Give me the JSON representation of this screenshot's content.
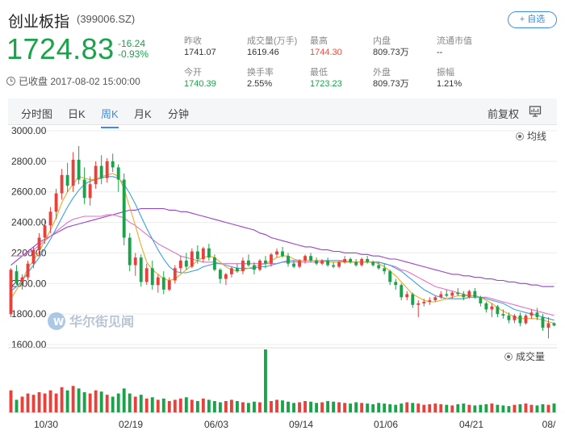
{
  "header": {
    "title": "创业板指",
    "code": "(399006.SZ)",
    "watch_label": "+ 自选"
  },
  "quote": {
    "price": "1724.83",
    "change": "-16.24",
    "change_pct": "-0.93%",
    "status": "已收盘 2017-08-02 15:00:00"
  },
  "stats": [
    {
      "label": "昨收",
      "value": "1741.07",
      "color": "normal"
    },
    {
      "label": "成交量(万手)",
      "value": "1619.46",
      "color": "normal"
    },
    {
      "label": "最高",
      "value": "1744.30",
      "color": "red"
    },
    {
      "label": "内盘",
      "value": "809.73万",
      "color": "normal"
    },
    {
      "label": "流通市值",
      "value": "--",
      "color": "normal"
    },
    {
      "label": "今开",
      "value": "1740.39",
      "color": "green"
    },
    {
      "label": "换手率",
      "value": "2.55%",
      "color": "normal"
    },
    {
      "label": "最低",
      "value": "1723.23",
      "color": "green"
    },
    {
      "label": "外盘",
      "value": "809.73万",
      "color": "normal"
    },
    {
      "label": "振幅",
      "value": "1.21%",
      "color": "normal"
    }
  ],
  "tabs": [
    {
      "label": "分时图",
      "active": false
    },
    {
      "label": "日K",
      "active": false
    },
    {
      "label": "周K",
      "active": true
    },
    {
      "label": "月K",
      "active": false
    },
    {
      "label": "分钟",
      "active": false
    }
  ],
  "adjust_label": "前复权",
  "colors": {
    "up": "#e8413c",
    "down": "#1aa34a",
    "ma5": "#f5a623",
    "ma10": "#3aa0e0",
    "ma20": "#e56fc8",
    "ma60": "#9b3fcf",
    "accent": "#3a8ee6"
  },
  "chart_data": {
    "type": "candlestick",
    "y_ticks": [
      "3000.00",
      "2800.00",
      "2600.00",
      "2400.00",
      "2200.00",
      "2000.00",
      "1800.00",
      "1600.00"
    ],
    "ylim": [
      1600,
      3000
    ],
    "x_labels": [
      "10/30",
      "02/19",
      "06/03",
      "09/14",
      "01/06",
      "04/21",
      "08/"
    ],
    "ma_legend": "均线",
    "volume_legend": "成交量",
    "watermark": "华尔街见闻",
    "price_series": [
      [
        1800,
        2100,
        1780,
        2090
      ],
      [
        2080,
        2120,
        1990,
        2010
      ],
      [
        2010,
        2060,
        1960,
        2040
      ],
      [
        2040,
        2150,
        2020,
        2130
      ],
      [
        2130,
        2240,
        2100,
        2220
      ],
      [
        2220,
        2330,
        2180,
        2300
      ],
      [
        2300,
        2420,
        2260,
        2380
      ],
      [
        2380,
        2500,
        2330,
        2470
      ],
      [
        2470,
        2620,
        2420,
        2590
      ],
      [
        2590,
        2750,
        2550,
        2710
      ],
      [
        2710,
        2790,
        2600,
        2640
      ],
      [
        2640,
        2860,
        2600,
        2810
      ],
      [
        2810,
        2900,
        2650,
        2680
      ],
      [
        2680,
        2760,
        2520,
        2560
      ],
      [
        2560,
        2700,
        2510,
        2650
      ],
      [
        2650,
        2800,
        2620,
        2770
      ],
      [
        2770,
        2840,
        2650,
        2690
      ],
      [
        2690,
        2820,
        2660,
        2800
      ],
      [
        2800,
        2850,
        2730,
        2760
      ],
      [
        2760,
        2780,
        2600,
        2680
      ],
      [
        2680,
        2720,
        2250,
        2300
      ],
      [
        2300,
        2330,
        2080,
        2120
      ],
      [
        2120,
        2200,
        2050,
        2170
      ],
      [
        2170,
        2190,
        1980,
        2010
      ],
      [
        2010,
        2130,
        1990,
        2100
      ],
      [
        2100,
        2150,
        1960,
        1990
      ],
      [
        1990,
        2060,
        1940,
        2040
      ],
      [
        2040,
        2080,
        1930,
        1960
      ],
      [
        1960,
        2040,
        1950,
        2020
      ],
      [
        2020,
        2120,
        2000,
        2100
      ],
      [
        2100,
        2180,
        2070,
        2150
      ],
      [
        2150,
        2200,
        2090,
        2110
      ],
      [
        2110,
        2230,
        2100,
        2210
      ],
      [
        2210,
        2250,
        2130,
        2160
      ],
      [
        2160,
        2240,
        2140,
        2230
      ],
      [
        2230,
        2260,
        2150,
        2170
      ],
      [
        2170,
        2190,
        2080,
        2090
      ],
      [
        2090,
        2100,
        2000,
        2030
      ],
      [
        2030,
        2070,
        1990,
        2060
      ],
      [
        2060,
        2110,
        2040,
        2100
      ],
      [
        2100,
        2130,
        2070,
        2080
      ],
      [
        2080,
        2170,
        2060,
        2150
      ],
      [
        2150,
        2190,
        2110,
        2120
      ],
      [
        2120,
        2140,
        2060,
        2090
      ],
      [
        2090,
        2160,
        2080,
        2150
      ],
      [
        2150,
        2180,
        2100,
        2130
      ],
      [
        2130,
        2200,
        2110,
        2190
      ],
      [
        2190,
        2230,
        2170,
        2210
      ],
      [
        2210,
        2240,
        2170,
        2180
      ],
      [
        2180,
        2200,
        2110,
        2130
      ],
      [
        2130,
        2150,
        2100,
        2110
      ],
      [
        2110,
        2160,
        2100,
        2150
      ],
      [
        2150,
        2190,
        2130,
        2180
      ],
      [
        2180,
        2200,
        2140,
        2150
      ],
      [
        2150,
        2170,
        2120,
        2130
      ],
      [
        2130,
        2160,
        2120,
        2150
      ],
      [
        2150,
        2170,
        2110,
        2120
      ],
      [
        2120,
        2140,
        2100,
        2110
      ],
      [
        2110,
        2150,
        2100,
        2140
      ],
      [
        2140,
        2180,
        2130,
        2160
      ],
      [
        2160,
        2170,
        2130,
        2140
      ],
      [
        2140,
        2160,
        2110,
        2120
      ],
      [
        2120,
        2170,
        2110,
        2160
      ],
      [
        2160,
        2180,
        2130,
        2140
      ],
      [
        2140,
        2150,
        2110,
        2120
      ],
      [
        2120,
        2140,
        2090,
        2100
      ],
      [
        2100,
        2130,
        2060,
        2080
      ],
      [
        2080,
        2090,
        1990,
        2010
      ],
      [
        2010,
        2030,
        1960,
        1990
      ],
      [
        1990,
        2000,
        1890,
        1910
      ],
      [
        1910,
        1950,
        1890,
        1930
      ],
      [
        1930,
        1940,
        1840,
        1860
      ],
      [
        1860,
        1890,
        1780,
        1870
      ],
      [
        1870,
        1900,
        1850,
        1880
      ],
      [
        1880,
        1910,
        1860,
        1890
      ],
      [
        1890,
        1920,
        1880,
        1910
      ],
      [
        1910,
        1950,
        1900,
        1930
      ],
      [
        1930,
        1960,
        1910,
        1920
      ],
      [
        1920,
        1950,
        1900,
        1940
      ],
      [
        1940,
        1970,
        1920,
        1930
      ],
      [
        1930,
        1950,
        1890,
        1910
      ],
      [
        1910,
        1960,
        1900,
        1950
      ],
      [
        1950,
        1970,
        1900,
        1910
      ],
      [
        1910,
        1920,
        1850,
        1870
      ],
      [
        1870,
        1880,
        1810,
        1830
      ],
      [
        1830,
        1870,
        1780,
        1850
      ],
      [
        1850,
        1860,
        1780,
        1800
      ],
      [
        1800,
        1830,
        1770,
        1790
      ],
      [
        1790,
        1810,
        1740,
        1760
      ],
      [
        1760,
        1800,
        1740,
        1790
      ],
      [
        1790,
        1810,
        1720,
        1740
      ],
      [
        1740,
        1800,
        1730,
        1790
      ],
      [
        1790,
        1830,
        1770,
        1810
      ],
      [
        1810,
        1840,
        1760,
        1780
      ],
      [
        1780,
        1800,
        1690,
        1710
      ],
      [
        1710,
        1780,
        1640,
        1740
      ],
      [
        1740,
        1745,
        1720,
        1725
      ]
    ],
    "ma5": [
      1900,
      1960,
      2020,
      2100,
      2150,
      2210,
      2280,
      2350,
      2430,
      2530,
      2600,
      2650,
      2700,
      2690,
      2680,
      2680,
      2700,
      2710,
      2720,
      2700,
      2620,
      2500,
      2380,
      2250,
      2140,
      2090,
      2060,
      2030,
      2020,
      2030,
      2060,
      2090,
      2120,
      2150,
      2170,
      2180,
      2170,
      2140,
      2110,
      2090,
      2080,
      2090,
      2100,
      2110,
      2120,
      2130,
      2150,
      2170,
      2180,
      2180,
      2160,
      2150,
      2150,
      2150,
      2150,
      2150,
      2140,
      2140,
      2140,
      2140,
      2140,
      2140,
      2140,
      2140,
      2140,
      2130,
      2110,
      2080,
      2050,
      2010,
      1970,
      1930,
      1910,
      1890,
      1880,
      1880,
      1890,
      1900,
      1910,
      1920,
      1920,
      1920,
      1920,
      1910,
      1890,
      1870,
      1840,
      1820,
      1800,
      1780,
      1770,
      1770,
      1770,
      1770,
      1760,
      1750,
      1740
    ],
    "ma10": [
      1950,
      1980,
      2020,
      2070,
      2120,
      2170,
      2230,
      2290,
      2360,
      2430,
      2500,
      2560,
      2610,
      2650,
      2670,
      2680,
      2690,
      2700,
      2700,
      2690,
      2650,
      2590,
      2520,
      2440,
      2360,
      2290,
      2220,
      2160,
      2110,
      2080,
      2070,
      2070,
      2080,
      2090,
      2110,
      2120,
      2130,
      2130,
      2120,
      2110,
      2100,
      2100,
      2100,
      2100,
      2110,
      2110,
      2120,
      2130,
      2140,
      2150,
      2150,
      2150,
      2150,
      2150,
      2150,
      2150,
      2150,
      2150,
      2150,
      2140,
      2140,
      2140,
      2140,
      2140,
      2140,
      2140,
      2130,
      2120,
      2100,
      2080,
      2050,
      2020,
      1990,
      1960,
      1940,
      1920,
      1910,
      1900,
      1900,
      1900,
      1900,
      1910,
      1910,
      1910,
      1900,
      1890,
      1880,
      1870,
      1850,
      1830,
      1820,
      1810,
      1800,
      1790,
      1780,
      1770,
      1760
    ],
    "ma20": [
      2180,
      2180,
      2180,
      2200,
      2220,
      2250,
      2280,
      2310,
      2340,
      2370,
      2400,
      2420,
      2430,
      2440,
      2440,
      2440,
      2440,
      2450,
      2450,
      2440,
      2430,
      2400,
      2380,
      2350,
      2320,
      2290,
      2260,
      2240,
      2220,
      2200,
      2180,
      2170,
      2160,
      2150,
      2140,
      2140,
      2140,
      2130,
      2130,
      2130,
      2130,
      2130,
      2130,
      2130,
      2130,
      2130,
      2130,
      2130,
      2140,
      2140,
      2140,
      2140,
      2140,
      2140,
      2140,
      2140,
      2150,
      2150,
      2150,
      2150,
      2140,
      2140,
      2140,
      2140,
      2140,
      2140,
      2130,
      2120,
      2110,
      2090,
      2080,
      2060,
      2040,
      2020,
      2000,
      1980,
      1970,
      1960,
      1950,
      1940,
      1930,
      1920,
      1920,
      1910,
      1910,
      1900,
      1890,
      1880,
      1870,
      1860,
      1850,
      1840,
      1830,
      1820,
      1810,
      1800,
      1790
    ],
    "ma60": [
      2120,
      2150,
      2180,
      2210,
      2240,
      2270,
      2290,
      2310,
      2330,
      2350,
      2370,
      2380,
      2390,
      2400,
      2410,
      2420,
      2430,
      2440,
      2450,
      2460,
      2470,
      2480,
      2480,
      2490,
      2490,
      2490,
      2490,
      2490,
      2480,
      2480,
      2470,
      2470,
      2460,
      2450,
      2440,
      2430,
      2420,
      2410,
      2400,
      2390,
      2380,
      2370,
      2360,
      2350,
      2330,
      2320,
      2300,
      2290,
      2280,
      2270,
      2260,
      2250,
      2240,
      2240,
      2230,
      2220,
      2220,
      2210,
      2210,
      2200,
      2200,
      2200,
      2190,
      2190,
      2180,
      2180,
      2170,
      2160,
      2160,
      2150,
      2140,
      2130,
      2120,
      2110,
      2100,
      2090,
      2080,
      2070,
      2060,
      2060,
      2050,
      2050,
      2040,
      2040,
      2030,
      2030,
      2020,
      2020,
      2010,
      2010,
      2000,
      2000,
      1990,
      1990,
      1980,
      1980,
      1980
    ],
    "volume": [
      35,
      20,
      25,
      30,
      28,
      32,
      30,
      35,
      30,
      40,
      35,
      42,
      38,
      32,
      30,
      35,
      33,
      28,
      25,
      30,
      38,
      30,
      25,
      28,
      22,
      24,
      20,
      22,
      18,
      20,
      22,
      24,
      20,
      18,
      22,
      20,
      18,
      16,
      18,
      20,
      18,
      16,
      15,
      17,
      16,
      100,
      18,
      20,
      19,
      17,
      15,
      16,
      18,
      17,
      15,
      16,
      18,
      17,
      16,
      15,
      14,
      16,
      15,
      14,
      13,
      15,
      14,
      13,
      12,
      14,
      16,
      15,
      14,
      12,
      13,
      14,
      13,
      12,
      11,
      13,
      14,
      12,
      11,
      12,
      13,
      14,
      12,
      11,
      10,
      12,
      13,
      14,
      12,
      11,
      13,
      12,
      14
    ]
  }
}
